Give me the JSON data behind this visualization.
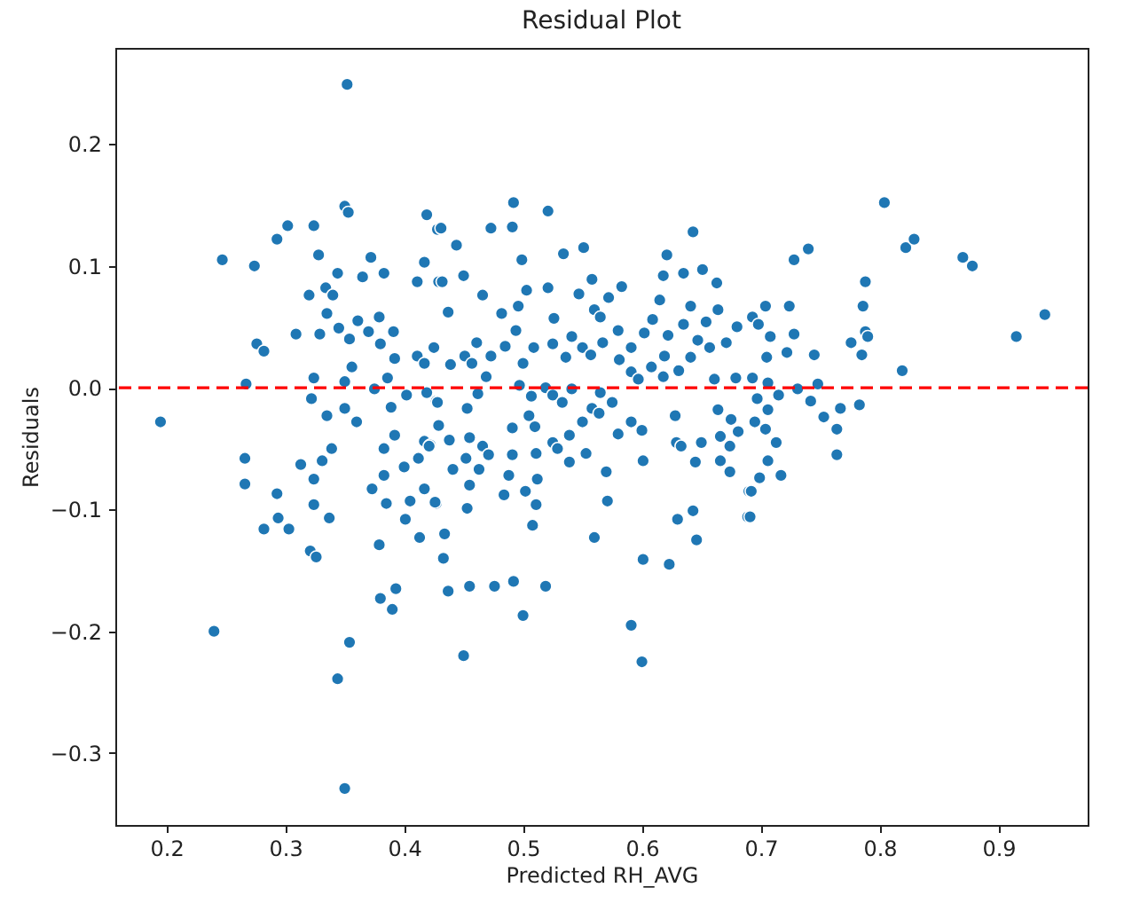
{
  "chart_data": {
    "type": "scatter",
    "title": "Residual Plot",
    "xlabel": "Predicted RH_AVG",
    "ylabel": "Residuals",
    "xlim": [
      0.157,
      0.975
    ],
    "ylim": [
      -0.359,
      0.279
    ],
    "xticks": [
      0.2,
      0.3,
      0.4,
      0.5,
      0.6,
      0.7,
      0.8,
      0.9
    ],
    "yticks": [
      -0.3,
      -0.2,
      -0.1,
      {
        "value": 0,
        "label": "0.0"
      },
      0.1,
      0.2
    ],
    "marker": "circle",
    "series": [
      {
        "color": "#1f77b4",
        "x": [
          0.195,
          0.247,
          0.24,
          0.274,
          0.267,
          0.276,
          0.282,
          0.266,
          0.266,
          0.293,
          0.282,
          0.294,
          0.303,
          0.293,
          0.302,
          0.324,
          0.309,
          0.313,
          0.321,
          0.326,
          0.324,
          0.322,
          0.324,
          0.324,
          0.328,
          0.32,
          0.329,
          0.331,
          0.337,
          0.334,
          0.34,
          0.335,
          0.335,
          0.339,
          0.344,
          0.344,
          0.35,
          0.35,
          0.35,
          0.352,
          0.35,
          0.353,
          0.354,
          0.345,
          0.354,
          0.356,
          0.36,
          0.361,
          0.365,
          0.372,
          0.37,
          0.379,
          0.38,
          0.383,
          0.375,
          0.386,
          0.391,
          0.392,
          0.389,
          0.392,
          0.383,
          0.383,
          0.373,
          0.385,
          0.379,
          0.38,
          0.39,
          0.393,
          0.402,
          0.4,
          0.405,
          0.401,
          0.413,
          0.411,
          0.417,
          0.419,
          0.411,
          0.417,
          0.425,
          0.419,
          0.427,
          0.412,
          0.417,
          0.422,
          0.417,
          0.427,
          0.428,
          0.429,
          0.431,
          0.444,
          0.432,
          0.45,
          0.437,
          0.466,
          0.473,
          0.492,
          0.491,
          0.521,
          0.499,
          0.439,
          0.451,
          0.461,
          0.457,
          0.473,
          0.469,
          0.485,
          0.5,
          0.509,
          0.494,
          0.482,
          0.496,
          0.503,
          0.521,
          0.526,
          0.525,
          0.536,
          0.534,
          0.551,
          0.547,
          0.558,
          0.572,
          0.583,
          0.56,
          0.565,
          0.541,
          0.55,
          0.557,
          0.567,
          0.58,
          0.581,
          0.591,
          0.591,
          0.597,
          0.602,
          0.609,
          0.615,
          0.618,
          0.621,
          0.622,
          0.619,
          0.618,
          0.608,
          0.631,
          0.635,
          0.635,
          0.643,
          0.641,
          0.641,
          0.651,
          0.654,
          0.647,
          0.657,
          0.664,
          0.663,
          0.671,
          0.68,
          0.693,
          0.704,
          0.708,
          0.705,
          0.661,
          0.679,
          0.693,
          0.697,
          0.428,
          0.453,
          0.462,
          0.497,
          0.507,
          0.519,
          0.525,
          0.533,
          0.541,
          0.565,
          0.575,
          0.558,
          0.564,
          0.429,
          0.421,
          0.438,
          0.455,
          0.466,
          0.471,
          0.463,
          0.452,
          0.441,
          0.455,
          0.453,
          0.426,
          0.434,
          0.433,
          0.437,
          0.455,
          0.476,
          0.492,
          0.519,
          0.5,
          0.45,
          0.491,
          0.505,
          0.51,
          0.491,
          0.488,
          0.484,
          0.511,
          0.512,
          0.502,
          0.511,
          0.508,
          0.525,
          0.529,
          0.539,
          0.539,
          0.55,
          0.553,
          0.57,
          0.571,
          0.56,
          0.58,
          0.591,
          0.6,
          0.601,
          0.591,
          0.6,
          0.601,
          0.623,
          0.63,
          0.643,
          0.646,
          0.628,
          0.629,
          0.633,
          0.645,
          0.65,
          0.664,
          0.675,
          0.666,
          0.674,
          0.666,
          0.674,
          0.681,
          0.695,
          0.706,
          0.704,
          0.713,
          0.706,
          0.699,
          0.69,
          0.689,
          0.717,
          0.804,
          0.822,
          0.829,
          0.87,
          0.878,
          0.915,
          0.939,
          0.819,
          0.788,
          0.786,
          0.788,
          0.79,
          0.776,
          0.785,
          0.783,
          0.767,
          0.764,
          0.764,
          0.753,
          0.742,
          0.748,
          0.745,
          0.731,
          0.715,
          0.706,
          0.728,
          0.74,
          0.724,
          0.728,
          0.722,
          0.698,
          0.692,
          0.691
        ],
        "values": [
          -0.028,
          0.105,
          -0.2,
          0.1,
          0.003,
          0.036,
          0.03,
          -0.058,
          -0.079,
          -0.087,
          -0.116,
          -0.107,
          -0.116,
          0.122,
          0.133,
          0.133,
          0.044,
          -0.063,
          -0.134,
          -0.139,
          0.008,
          -0.009,
          -0.075,
          -0.096,
          0.109,
          0.076,
          0.044,
          -0.06,
          -0.107,
          0.082,
          0.076,
          0.061,
          -0.023,
          -0.05,
          0.094,
          -0.239,
          0.005,
          -0.017,
          -0.329,
          0.249,
          0.149,
          0.144,
          -0.209,
          0.049,
          0.04,
          0.017,
          -0.028,
          0.055,
          0.091,
          0.107,
          0.046,
          0.058,
          0.036,
          0.094,
          -0.001,
          0.008,
          0.046,
          0.024,
          -0.016,
          -0.039,
          -0.05,
          -0.072,
          -0.083,
          -0.095,
          -0.129,
          -0.173,
          -0.182,
          -0.165,
          -0.006,
          -0.065,
          -0.093,
          -0.108,
          -0.123,
          0.087,
          0.103,
          0.142,
          0.026,
          0.02,
          0.033,
          -0.004,
          -0.011,
          -0.058,
          -0.044,
          -0.047,
          -0.083,
          -0.095,
          0.13,
          0.087,
          0.131,
          0.117,
          0.087,
          0.092,
          0.062,
          0.076,
          0.131,
          0.152,
          0.132,
          0.145,
          0.105,
          0.019,
          0.026,
          0.037,
          0.02,
          0.026,
          0.009,
          0.034,
          0.02,
          0.033,
          0.047,
          0.061,
          0.067,
          0.08,
          0.082,
          0.057,
          0.036,
          0.025,
          0.11,
          0.115,
          0.077,
          0.089,
          0.074,
          0.083,
          0.064,
          0.058,
          0.042,
          0.033,
          0.027,
          0.037,
          0.047,
          0.023,
          0.033,
          0.013,
          0.007,
          0.045,
          0.056,
          0.072,
          0.092,
          0.109,
          0.043,
          0.026,
          0.009,
          0.017,
          0.014,
          0.052,
          0.094,
          0.128,
          0.067,
          0.025,
          0.097,
          0.054,
          0.039,
          0.033,
          0.064,
          0.086,
          0.037,
          0.05,
          0.058,
          0.067,
          0.042,
          0.025,
          0.007,
          0.008,
          0.008,
          -0.009,
          -0.012,
          -0.017,
          -0.005,
          0.002,
          -0.007,
          0.0,
          -0.006,
          -0.012,
          -0.001,
          -0.004,
          -0.012,
          -0.017,
          -0.021,
          -0.031,
          -0.048,
          -0.043,
          -0.041,
          -0.048,
          -0.055,
          -0.067,
          -0.058,
          -0.067,
          -0.08,
          -0.099,
          -0.094,
          -0.12,
          -0.14,
          -0.167,
          -0.163,
          -0.163,
          -0.159,
          -0.163,
          -0.187,
          -0.22,
          -0.033,
          -0.023,
          -0.032,
          -0.055,
          -0.072,
          -0.088,
          -0.054,
          -0.075,
          -0.085,
          -0.096,
          -0.113,
          -0.045,
          -0.05,
          -0.039,
          -0.061,
          -0.028,
          -0.054,
          -0.069,
          -0.093,
          -0.123,
          -0.038,
          -0.028,
          -0.035,
          -0.06,
          -0.195,
          -0.225,
          -0.141,
          -0.145,
          -0.108,
          -0.101,
          -0.125,
          -0.023,
          -0.045,
          -0.048,
          -0.061,
          -0.045,
          -0.018,
          -0.026,
          -0.04,
          -0.048,
          -0.06,
          -0.069,
          -0.036,
          -0.028,
          -0.018,
          -0.034,
          -0.045,
          -0.06,
          -0.074,
          -0.085,
          -0.106,
          -0.072,
          0.152,
          0.115,
          0.122,
          0.107,
          0.1,
          0.042,
          0.06,
          0.014,
          0.087,
          0.067,
          0.046,
          0.042,
          0.037,
          0.027,
          -0.014,
          -0.017,
          -0.034,
          -0.055,
          -0.024,
          -0.011,
          0.003,
          0.027,
          -0.001,
          -0.006,
          0.004,
          0.105,
          0.114,
          0.067,
          0.044,
          0.029,
          0.052,
          -0.085,
          -0.106
        ]
      }
    ],
    "ref_lines": [
      {
        "axis": "y",
        "value": 0,
        "color": "#ff0000",
        "line_style": "dashed"
      }
    ]
  }
}
